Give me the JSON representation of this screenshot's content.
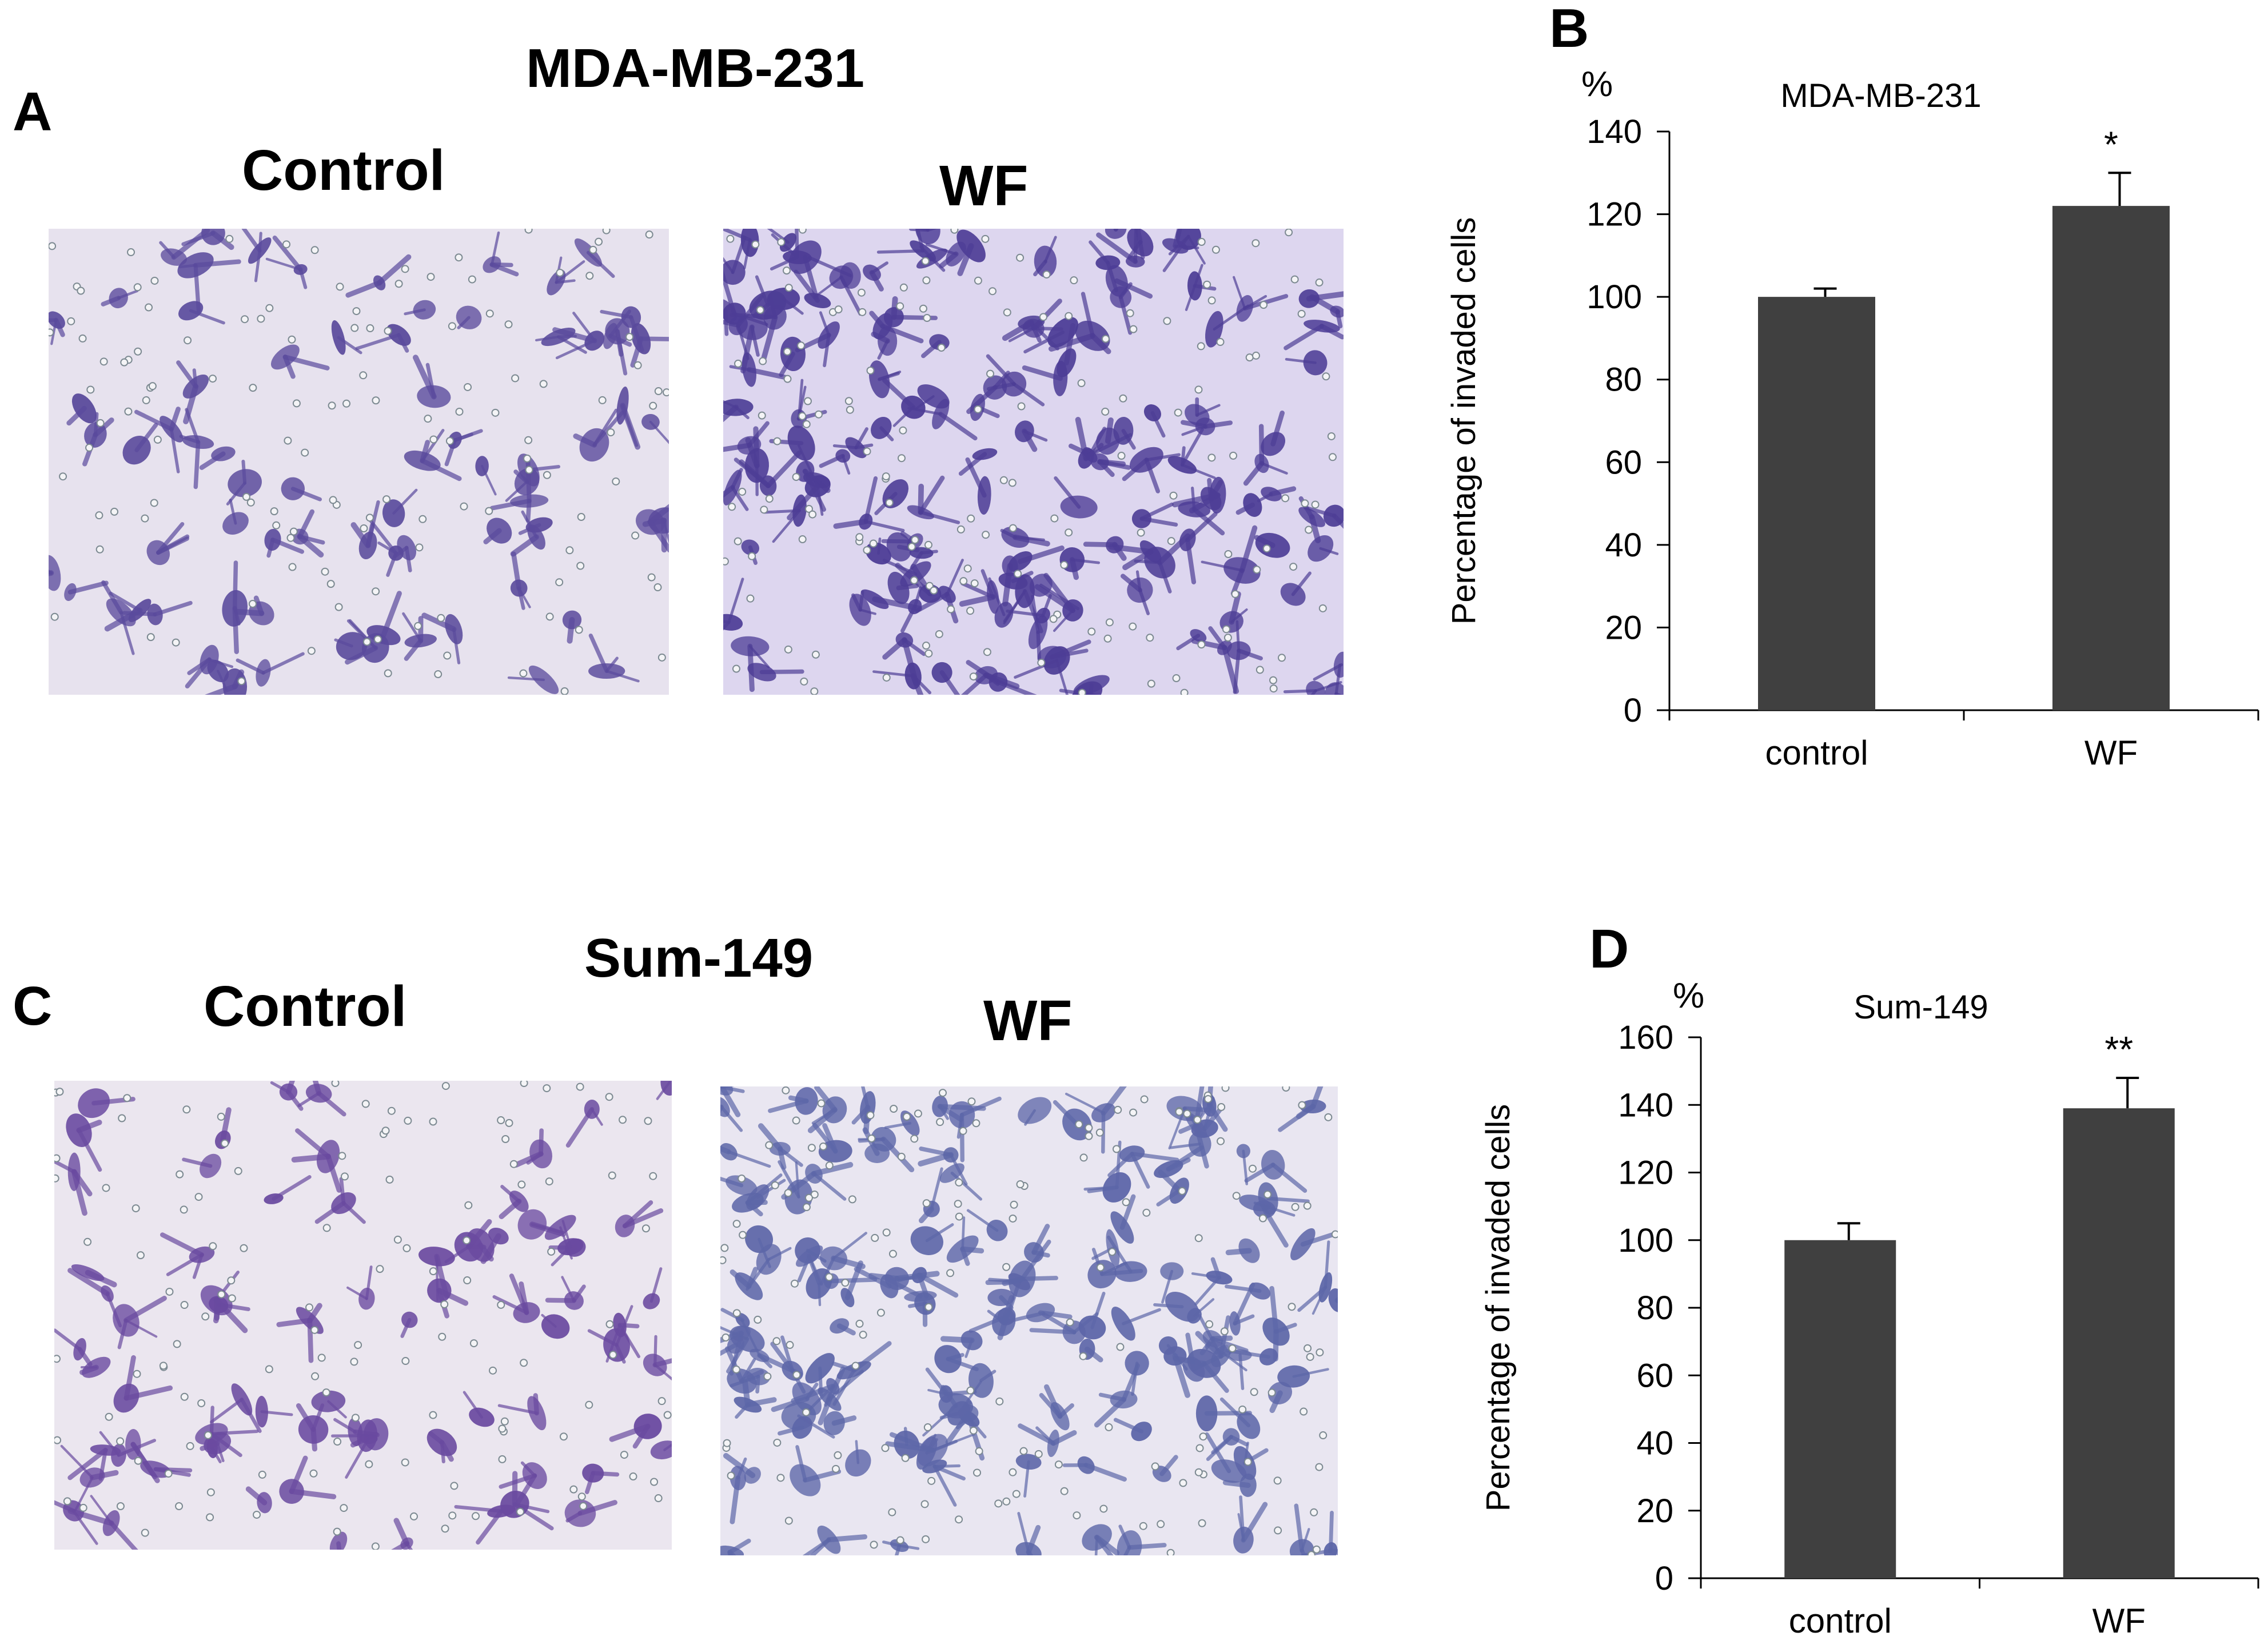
{
  "figure": {
    "panel_a": {
      "letter": "A",
      "cell_line": "MDA-MB-231",
      "left_label": "Control",
      "right_label": "WF"
    },
    "panel_c": {
      "letter": "C",
      "cell_line": "Sum-149",
      "left_label": "Control",
      "right_label": "WF"
    },
    "micrographs": [
      {
        "name": "mda-control-micrograph",
        "background": "#e7e2ee",
        "cell_color": "#5a4a9c",
        "density": "sparse"
      },
      {
        "name": "mda-wf-micrograph",
        "background": "#ddd6ef",
        "cell_color": "#4d3d96",
        "density": "dense"
      },
      {
        "name": "sum-control-micrograph",
        "background": "#ebe6ef",
        "cell_color": "#6a4aa0",
        "density": "sparse"
      },
      {
        "name": "sum-wf-micrograph",
        "background": "#e9e6f1",
        "cell_color": "#5d66a8",
        "density": "dense"
      }
    ]
  },
  "chart_data": [
    {
      "letter": "B",
      "type": "bar",
      "title": "MDA-MB-231",
      "unit_label": "%",
      "ylabel": "Percentage of invaded cells",
      "categories": [
        "control",
        "WF"
      ],
      "values": [
        100,
        122
      ],
      "errors": [
        2,
        8
      ],
      "significance": [
        "",
        "*"
      ],
      "ylim": [
        0,
        140
      ],
      "yticks": [
        0,
        20,
        40,
        60,
        80,
        100,
        120,
        140
      ],
      "bar_color": "#404040",
      "grid": false
    },
    {
      "letter": "D",
      "type": "bar",
      "title": "Sum-149",
      "unit_label": "%",
      "ylabel": "Percentage of invaded cells",
      "categories": [
        "control",
        "WF"
      ],
      "values": [
        100,
        139
      ],
      "errors": [
        5,
        9
      ],
      "significance": [
        "",
        "**"
      ],
      "ylim": [
        0,
        160
      ],
      "yticks": [
        0,
        20,
        40,
        60,
        80,
        100,
        120,
        140,
        160
      ],
      "bar_color": "#404040",
      "grid": false
    }
  ]
}
